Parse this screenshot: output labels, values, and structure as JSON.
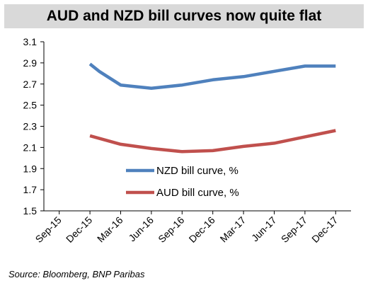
{
  "chart_data": {
    "type": "line",
    "title": "AUD and NZD bill curves now quite flat",
    "categories": [
      "Sep-15",
      "Dec-15",
      "Mar-16",
      "Jun-16",
      "Sep-16",
      "Dec-16",
      "Mar-17",
      "Jun-17",
      "Sep-17",
      "Dec-17"
    ],
    "ylim": [
      1.5,
      3.1
    ],
    "yticks": [
      "3.1",
      "2.9",
      "2.7",
      "2.5",
      "2.3",
      "2.1",
      "1.9",
      "1.7",
      "1.5"
    ],
    "series": [
      {
        "name": "NZD bill curve, %",
        "color": "#4f81bd",
        "points": [
          [
            1,
            2.89
          ],
          [
            1.3,
            2.82
          ],
          [
            2,
            2.69
          ],
          [
            3,
            2.66
          ],
          [
            4,
            2.69
          ],
          [
            5,
            2.74
          ],
          [
            6,
            2.77
          ],
          [
            7,
            2.82
          ],
          [
            8,
            2.87
          ],
          [
            9,
            2.87
          ]
        ]
      },
      {
        "name": "AUD bill curve, %",
        "color": "#c0504d",
        "points": [
          [
            1,
            2.21
          ],
          [
            2,
            2.13
          ],
          [
            3,
            2.09
          ],
          [
            4,
            2.06
          ],
          [
            5,
            2.07
          ],
          [
            6,
            2.11
          ],
          [
            7,
            2.14
          ],
          [
            8,
            2.2
          ],
          [
            9,
            2.26
          ]
        ]
      }
    ],
    "legend_position": "center"
  },
  "source": "Source: Bloomberg, BNP Paribas"
}
